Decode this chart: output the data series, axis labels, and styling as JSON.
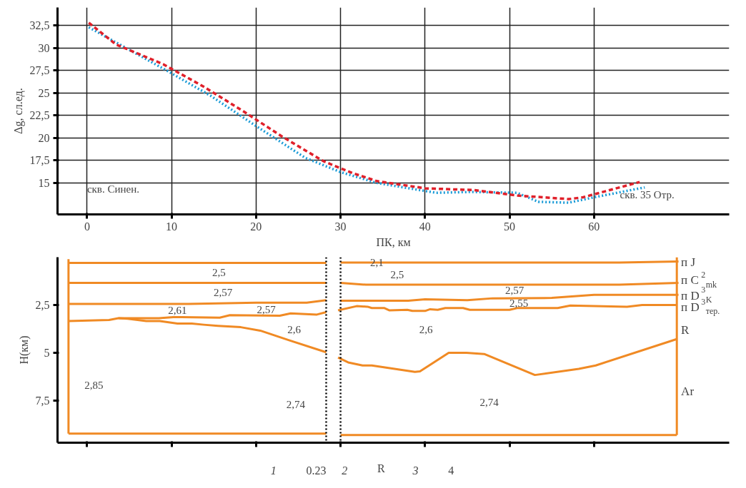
{
  "chart_data": [
    {
      "type": "line",
      "ylabel": "Δg, сл.ед.",
      "xlabel": "ПК, км",
      "xlim": [
        -3.5,
        76
      ],
      "ylim": [
        11.5,
        34.5
      ],
      "xticks": [
        0,
        10,
        20,
        30,
        40,
        50,
        60
      ],
      "yticks": [
        15,
        {
          "value": 17.5,
          "label": "17,5"
        },
        20,
        {
          "value": 22.5,
          "label": "22,5"
        },
        25,
        {
          "value": 27.5,
          "label": "27,5"
        },
        30,
        {
          "value": 32.5,
          "label": "32,5"
        }
      ],
      "grid": true,
      "series": [
        {
          "color": "#1a9bd7",
          "line_style": "dotted",
          "x": [
            0.2,
            4.8,
            9.6,
            14.6,
            20.2,
            25.8,
            30,
            34.3,
            41.3,
            45.5,
            50.9,
            53.4,
            57,
            60,
            66
          ],
          "values": [
            32.3,
            29.9,
            27.4,
            24.7,
            21.2,
            17.8,
            16.2,
            15,
            13.9,
            14,
            13.9,
            12.9,
            12.8,
            13.4,
            14.5
          ]
        },
        {
          "color": "#e0202a",
          "line_style": "dashed",
          "x": [
            0.2,
            3.4,
            9,
            13.8,
            18.6,
            23,
            28,
            31.4,
            34.3,
            40,
            45.8,
            50.9,
            57,
            58.7,
            65.4
          ],
          "values": [
            32.8,
            30.4,
            28.2,
            25.7,
            22.9,
            20.2,
            17.4,
            16.1,
            15.2,
            14.4,
            14.2,
            13.6,
            13.2,
            13.4,
            15.1
          ]
        }
      ],
      "annotations": [
        "скв. Синен.",
        "скв. 35 Отр."
      ]
    },
    {
      "type": "line",
      "ylabel": "Н(км)",
      "xlim": [
        -3.5,
        76
      ],
      "ylim": [
        9.7,
        0
      ],
      "yticks": [
        {
          "value": 2.5,
          "label": "2,5"
        },
        5,
        {
          "value": 7.5,
          "label": "7,5"
        }
      ],
      "tick_labels": "y",
      "grid": false,
      "color": "#f08a24",
      "series": [
        {
          "x": [
            -2.2,
            28.3
          ],
          "values": [
            0.3,
            0.3
          ]
        },
        {
          "x": [
            30,
            63,
            70
          ],
          "values": [
            0.28,
            0.28,
            0.22
          ]
        },
        {
          "x": [
            -2.2,
            28.3
          ],
          "values": [
            1.34,
            1.34
          ]
        },
        {
          "x": [
            30,
            33,
            63,
            70
          ],
          "values": [
            1.34,
            1.44,
            1.44,
            1.34
          ]
        },
        {
          "x": [
            -2.2,
            12,
            20,
            26,
            28.3
          ],
          "values": [
            2.44,
            2.44,
            2.38,
            2.38,
            2.25
          ]
        },
        {
          "x": [
            30,
            38,
            40,
            45,
            48,
            55,
            60,
            70
          ],
          "values": [
            2.28,
            2.28,
            2.2,
            2.25,
            2.15,
            2.13,
            1.97,
            1.97
          ]
        },
        {
          "x": [
            -2.2,
            2.6,
            3.7,
            8.5,
            10.2,
            15.7,
            16.9,
            22.8,
            24.1,
            27.2,
            28.3
          ],
          "values": [
            3.34,
            3.28,
            3.19,
            3.19,
            3.13,
            3.16,
            3.03,
            3.06,
            2.94,
            3.0,
            2.87
          ]
        },
        {
          "x": [
            29.7,
            31.9,
            33.2,
            33.7,
            35.2,
            35.8,
            37.9,
            38.5,
            40,
            40.6,
            41.5,
            42.4,
            44.5,
            45.3,
            50,
            50.9,
            55.7,
            57.2,
            63.9,
            65.7,
            69.8
          ],
          "values": [
            2.78,
            2.56,
            2.59,
            2.66,
            2.66,
            2.78,
            2.75,
            2.81,
            2.81,
            2.72,
            2.75,
            2.66,
            2.66,
            2.75,
            2.75,
            2.66,
            2.66,
            2.53,
            2.59,
            2.5,
            2.5
          ]
        },
        {
          "x": [
            3.7,
            4.8,
            7,
            8.6,
            10.7,
            12.4,
            13.8,
            15.5,
            18.2,
            20.5,
            23.9,
            28.3
          ],
          "values": [
            3.19,
            3.22,
            3.34,
            3.34,
            3.47,
            3.47,
            3.53,
            3.59,
            3.66,
            3.84,
            4.34,
            4.97
          ]
        },
        {
          "x": [
            29.7,
            30.9,
            32.6,
            33.7,
            38.8,
            39.4,
            42.8,
            44.9,
            47,
            53,
            58.2,
            60.2,
            69.8
          ],
          "values": [
            5.25,
            5.5,
            5.66,
            5.66,
            6.0,
            5.97,
            5.0,
            5.0,
            5.06,
            6.16,
            5.84,
            5.66,
            4.28
          ]
        },
        {
          "x": [
            -2.2,
            28.3
          ],
          "values": [
            9.22,
            9.22
          ]
        },
        {
          "x": [
            30,
            69.8
          ],
          "values": [
            9.3,
            9.3
          ]
        },
        {
          "x": [
            -2.2,
            -2.2
          ],
          "values": [
            0.1,
            9.22
          ]
        },
        {
          "x": [
            69.8,
            69.8
          ],
          "values": [
            0,
            9.3
          ]
        }
      ],
      "ref_lines": [
        {
          "axis": "x",
          "value": 28.3,
          "color": "#000000",
          "line_style": "dotted"
        },
        {
          "axis": "x",
          "value": 30,
          "color": "#000000",
          "line_style": "dotted"
        }
      ],
      "annotations": [
        "2,1",
        "2,5",
        "2,5",
        "2,57",
        "2,57",
        "2,61",
        "2,57",
        "2,55",
        "2,6",
        "2,6",
        "2,85",
        "2,74",
        "2,74",
        "п J",
        "п C$^{2}$$_{mk}$",
        "п D$^{3}$$_{K}$",
        "п D$^{3}$$_{тер.}$",
        "R",
        "Ar",
        "1",
        "0.23",
        "2",
        "R",
        "3",
        "4"
      ]
    }
  ]
}
